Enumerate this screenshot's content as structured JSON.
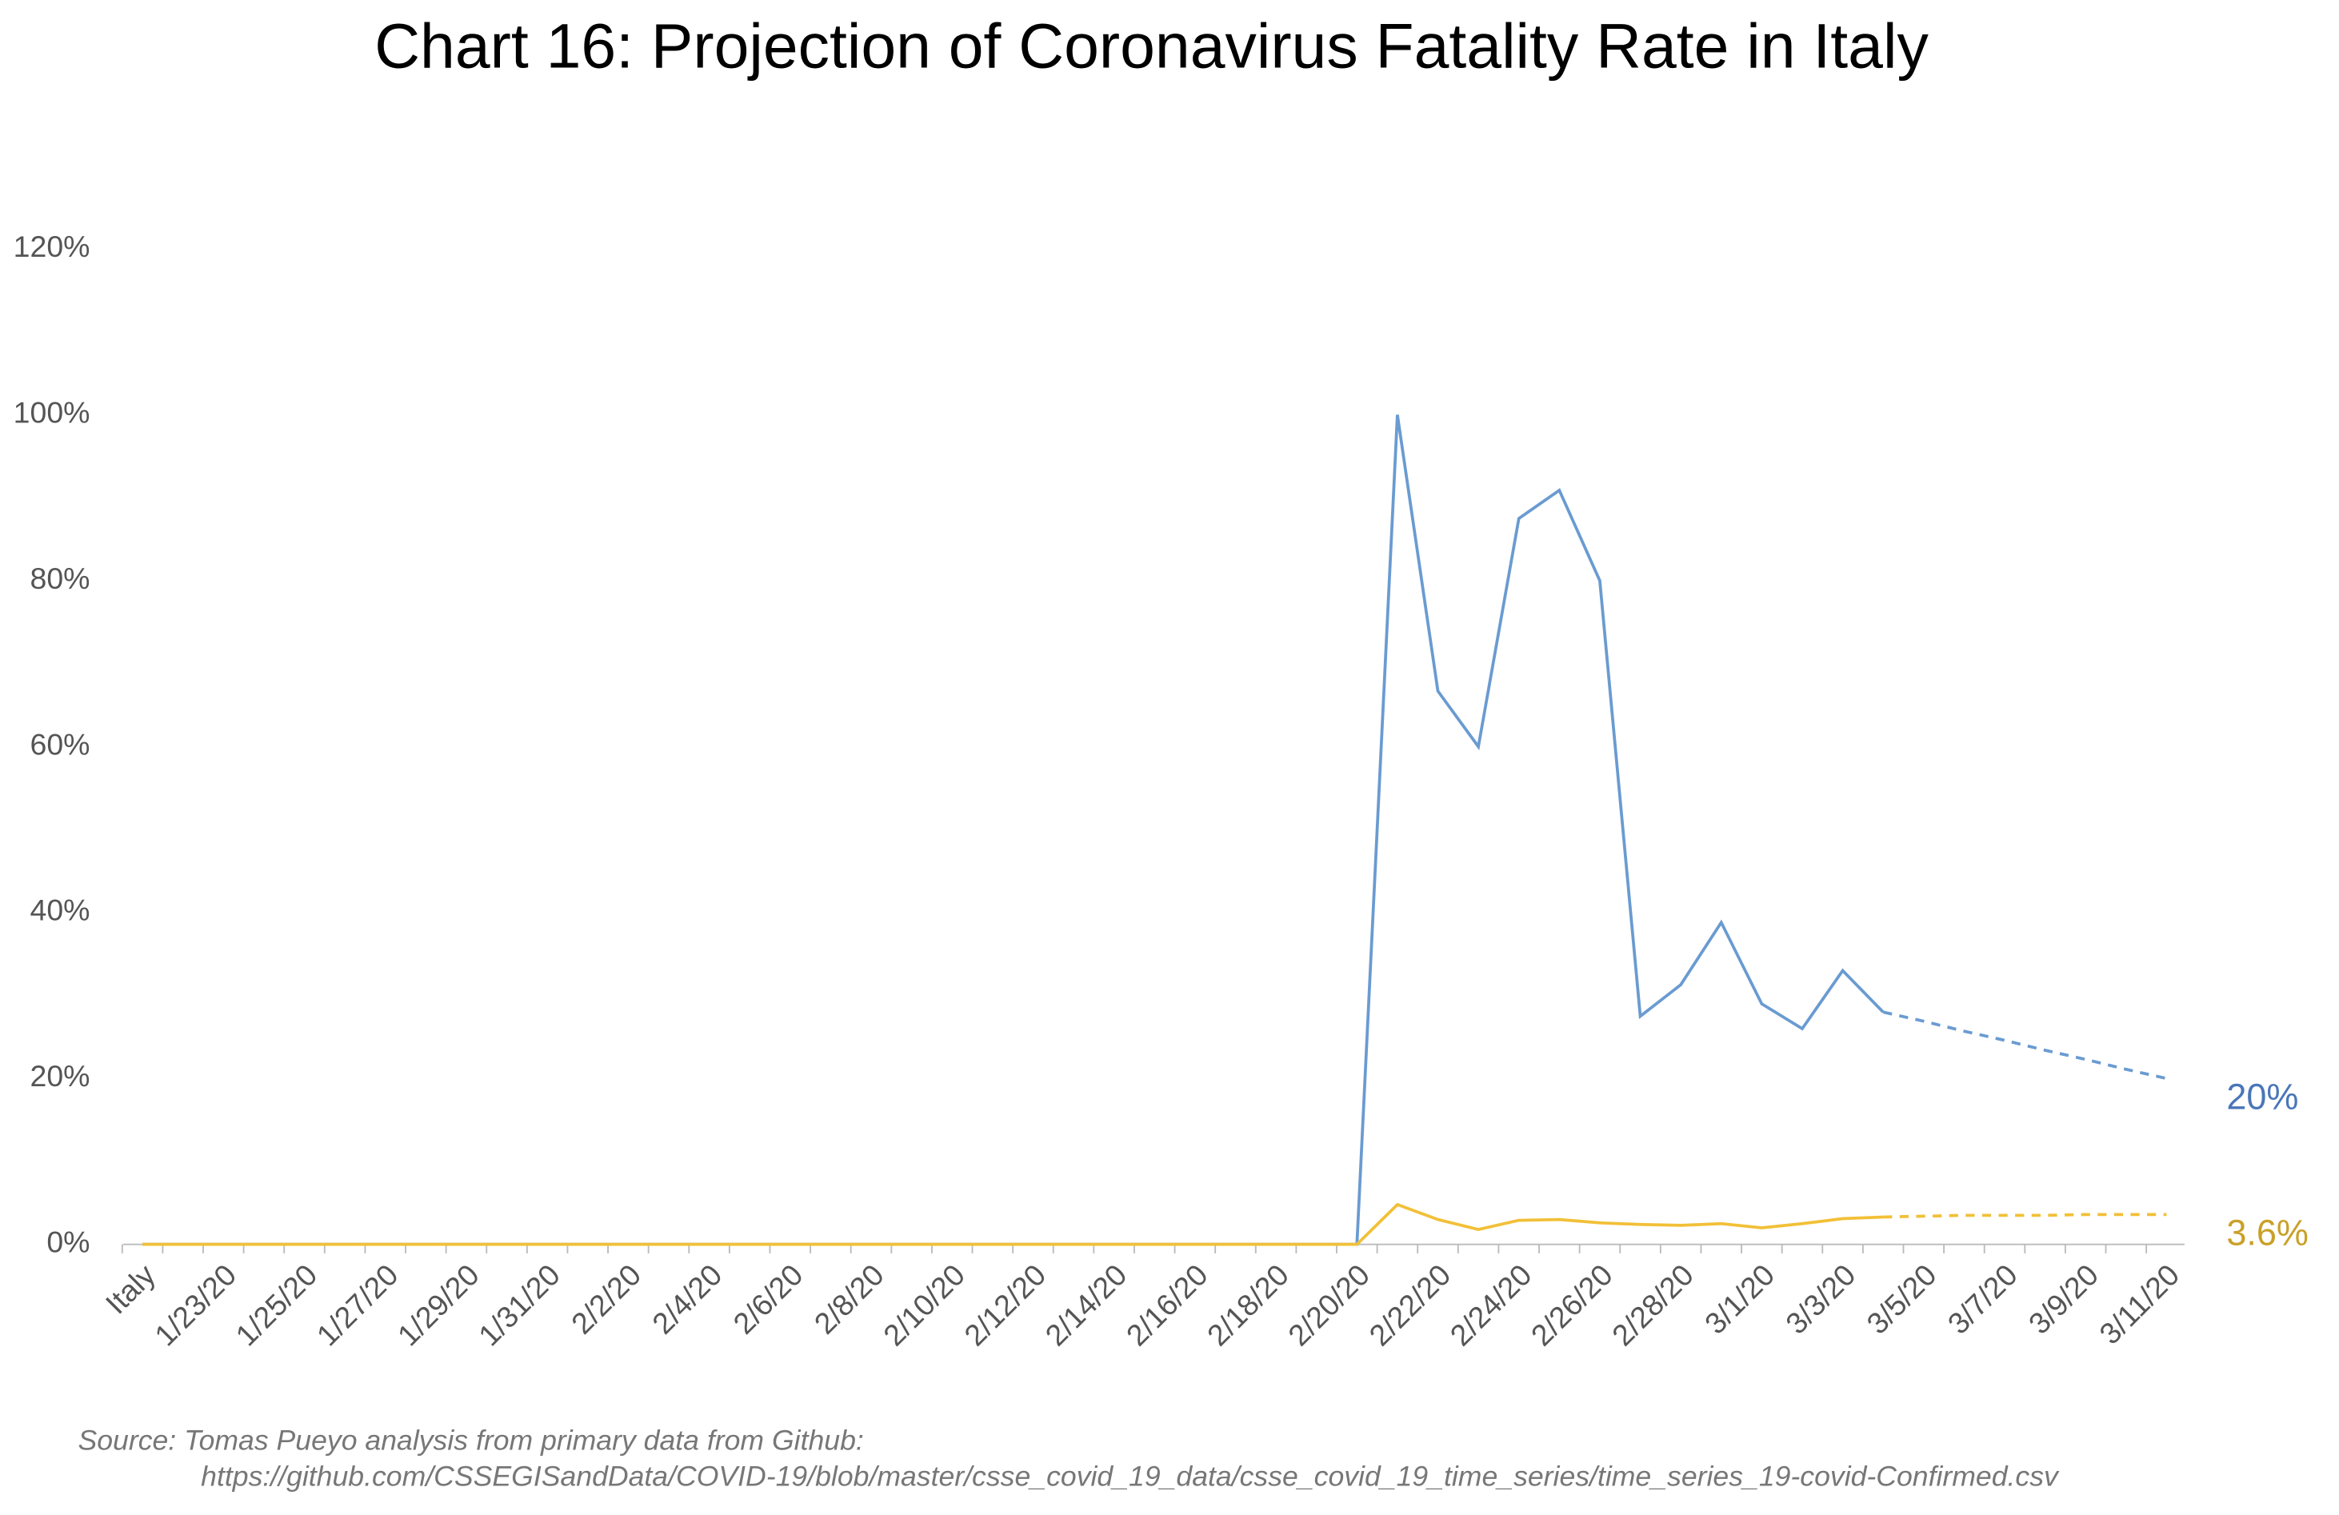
{
  "chart_data": {
    "type": "line",
    "title": "Chart 16: Projection of Coronavirus Fatality Rate in Italy",
    "categories": [
      "Italy",
      null,
      "1/23/20",
      null,
      "1/25/20",
      null,
      "1/27/20",
      null,
      "1/29/20",
      null,
      "1/31/20",
      null,
      "2/2/20",
      null,
      "2/4/20",
      null,
      "2/6/20",
      null,
      "2/8/20",
      null,
      "2/10/20",
      null,
      "2/12/20",
      null,
      "2/14/20",
      null,
      "2/16/20",
      null,
      "2/18/20",
      null,
      "2/20/20",
      null,
      "2/22/20",
      null,
      "2/24/20",
      null,
      "2/26/20",
      null,
      "2/28/20",
      null,
      "3/1/20",
      null,
      "3/3/20",
      null,
      "3/5/20",
      null,
      "3/7/20",
      null,
      "3/9/20",
      null,
      "3/11/20"
    ],
    "series": [
      {
        "color": "#6a9bd1",
        "dashed": false,
        "values": [
          0,
          0,
          0,
          0,
          0,
          0,
          0,
          0,
          0,
          0,
          0,
          0,
          0,
          0,
          0,
          0,
          0,
          0,
          0,
          0,
          0,
          0,
          0,
          0,
          0,
          0,
          0,
          0,
          0,
          0,
          0,
          100,
          66.7,
          60,
          87.5,
          90.9,
          80,
          27.5,
          31.3,
          38.8,
          29,
          26,
          33,
          28,
          null,
          null,
          null,
          null,
          null,
          null,
          null
        ]
      },
      {
        "color": "#6a9bd1",
        "dashed": true,
        "values": [
          null,
          null,
          null,
          null,
          null,
          null,
          null,
          null,
          null,
          null,
          null,
          null,
          null,
          null,
          null,
          null,
          null,
          null,
          null,
          null,
          null,
          null,
          null,
          null,
          null,
          null,
          null,
          null,
          null,
          null,
          null,
          null,
          null,
          null,
          null,
          null,
          null,
          null,
          null,
          null,
          null,
          null,
          null,
          28,
          26.9,
          25.7,
          24.6,
          23.4,
          22.3,
          21.1,
          20
        ],
        "value_labels": [
          null,
          null,
          null,
          null,
          null,
          null,
          null,
          null,
          null,
          null,
          null,
          null,
          null,
          null,
          null,
          null,
          null,
          null,
          null,
          null,
          null,
          null,
          null,
          null,
          null,
          null,
          null,
          null,
          null,
          null,
          null,
          null,
          null,
          null,
          null,
          null,
          null,
          null,
          null,
          null,
          null,
          null,
          null,
          null,
          null,
          null,
          null,
          null,
          null,
          null,
          "20%"
        ]
      },
      {
        "color": "#f2c037",
        "dashed": false,
        "values": [
          0,
          0,
          0,
          0,
          0,
          0,
          0,
          0,
          0,
          0,
          0,
          0,
          0,
          0,
          0,
          0,
          0,
          0,
          0,
          0,
          0,
          0,
          0,
          0,
          0,
          0,
          0,
          0,
          0,
          0,
          0,
          4.8,
          3.0,
          1.8,
          2.9,
          3.0,
          2.6,
          2.4,
          2.3,
          2.5,
          2.0,
          2.5,
          3.1,
          3.3,
          null,
          null,
          null,
          null,
          null,
          null,
          null
        ]
      },
      {
        "color": "#f2c037",
        "dashed": true,
        "values": [
          null,
          null,
          null,
          null,
          null,
          null,
          null,
          null,
          null,
          null,
          null,
          null,
          null,
          null,
          null,
          null,
          null,
          null,
          null,
          null,
          null,
          null,
          null,
          null,
          null,
          null,
          null,
          null,
          null,
          null,
          null,
          null,
          null,
          null,
          null,
          null,
          null,
          null,
          null,
          null,
          null,
          null,
          null,
          3.3,
          3.4,
          3.5,
          3.5,
          3.5,
          3.6,
          3.6,
          3.6
        ],
        "value_labels": [
          null,
          null,
          null,
          null,
          null,
          null,
          null,
          null,
          null,
          null,
          null,
          null,
          null,
          null,
          null,
          null,
          null,
          null,
          null,
          null,
          null,
          null,
          null,
          null,
          null,
          null,
          null,
          null,
          null,
          null,
          null,
          null,
          null,
          null,
          null,
          null,
          null,
          null,
          null,
          null,
          null,
          null,
          null,
          null,
          null,
          null,
          null,
          null,
          null,
          null,
          "3.6%"
        ]
      }
    ],
    "ylim": [
      0,
      120
    ],
    "yticks": [
      {
        "value": 0,
        "label": "0%"
      },
      {
        "value": 20,
        "label": "20%"
      },
      {
        "value": 40,
        "label": "40%"
      },
      {
        "value": 60,
        "label": "60%"
      },
      {
        "value": 80,
        "label": "80%"
      },
      {
        "value": 100,
        "label": "100%"
      },
      {
        "value": 120,
        "label": "120%"
      }
    ],
    "grid": false,
    "source": [
      "Source: Tomas Pueyo analysis from primary data from Github:",
      "https://github.com/CSSEGISandData/COVID-19/blob/master/csse_covid_19_data/csse_covid_19_time_series/time_series_19-covid-Confirmed.csv"
    ]
  }
}
